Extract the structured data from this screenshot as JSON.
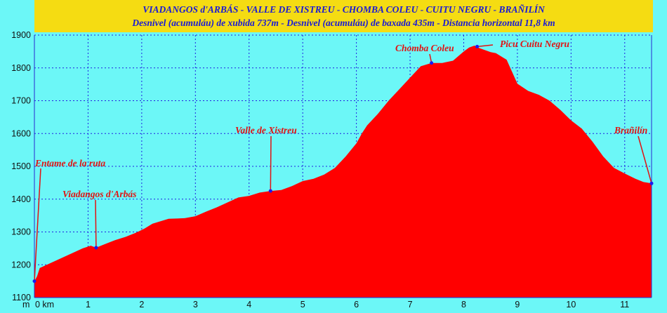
{
  "header": {
    "title": "VIADANGOS d'ARBÁS - VALLE DE XISTREU - CHOMBA COLEU - CUITU NEGRU - BRAÑILÍN",
    "subtitle": "Desnivel (acumuláu) de xubida 737m - Desnivel (acumuláu) de baxada 435m - Distancia horizontal 11,8 km"
  },
  "colors": {
    "background": "#6cf7f7",
    "title_bg": "#f5dc12",
    "title_text": "#1a1ad6",
    "profile_fill": "#ff0000",
    "annotation": "#e21212",
    "grid": "#2020e0",
    "marker": "#1a1af0"
  },
  "chart_data": {
    "type": "area",
    "title": "VIADANGOS d'ARBÁS - VALLE DE XISTREU - CHOMBA COLEU - CUITU NEGRU - BRAÑILÍN",
    "xlabel": "km",
    "ylabel": "m",
    "xlim": [
      0,
      11.5
    ],
    "ylim": [
      1100,
      1900
    ],
    "grid": true,
    "x_ticks": [
      0,
      1,
      2,
      3,
      4,
      5,
      6,
      7,
      8,
      9,
      10,
      11
    ],
    "x_tick_labels": [
      "0 km",
      "1",
      "2",
      "3",
      "4",
      "5",
      "6",
      "7",
      "8",
      "9",
      "10",
      "11"
    ],
    "y_ticks": [
      1100,
      1200,
      1300,
      1400,
      1500,
      1600,
      1700,
      1800,
      1900
    ],
    "y_axis_unit": "m",
    "series": [
      {
        "x": [
          0,
          0.05,
          0.1,
          0.3,
          0.5,
          0.7,
          0.9,
          1.05,
          1.15,
          1.3,
          1.5,
          1.7,
          1.9,
          2.05,
          2.2,
          2.5,
          2.8,
          3.0,
          3.2,
          3.4,
          3.6,
          3.8,
          4.0,
          4.2,
          4.4,
          4.6,
          4.8,
          5.0,
          5.2,
          5.4,
          5.6,
          5.8,
          6.0,
          6.1,
          6.2,
          6.4,
          6.6,
          6.8,
          7.0,
          7.2,
          7.4,
          7.6,
          7.8,
          8.0,
          8.1,
          8.2,
          8.3,
          8.5,
          8.6,
          8.8,
          9.0,
          9.2,
          9.4,
          9.6,
          9.8,
          10.0,
          10.2,
          10.4,
          10.6,
          10.8,
          11.0,
          11.2,
          11.35,
          11.5
        ],
        "y": [
          1150,
          1165,
          1190,
          1205,
          1220,
          1235,
          1250,
          1258,
          1252,
          1262,
          1275,
          1285,
          1298,
          1310,
          1325,
          1340,
          1342,
          1348,
          1362,
          1375,
          1390,
          1405,
          1410,
          1420,
          1425,
          1428,
          1440,
          1455,
          1462,
          1475,
          1495,
          1530,
          1570,
          1600,
          1625,
          1660,
          1700,
          1735,
          1770,
          1805,
          1815,
          1815,
          1822,
          1850,
          1862,
          1868,
          1860,
          1848,
          1845,
          1825,
          1752,
          1730,
          1718,
          1700,
          1672,
          1640,
          1615,
          1575,
          1530,
          1495,
          1478,
          1462,
          1452,
          1448
        ]
      }
    ],
    "annotations": [
      {
        "label": "Entame de la ruta",
        "x": 0.0,
        "y": 1150
      },
      {
        "label": "Viadangos d'Arbás",
        "x": 1.15,
        "y": 1252
      },
      {
        "label": "Valle de Xistreu",
        "x": 4.4,
        "y": 1425
      },
      {
        "label": "Chomba Coleu",
        "x": 7.4,
        "y": 1815
      },
      {
        "label": "Picu Cuitu Negru",
        "x": 8.25,
        "y": 1865
      },
      {
        "label": "Brañilín",
        "x": 11.5,
        "y": 1448
      }
    ]
  }
}
